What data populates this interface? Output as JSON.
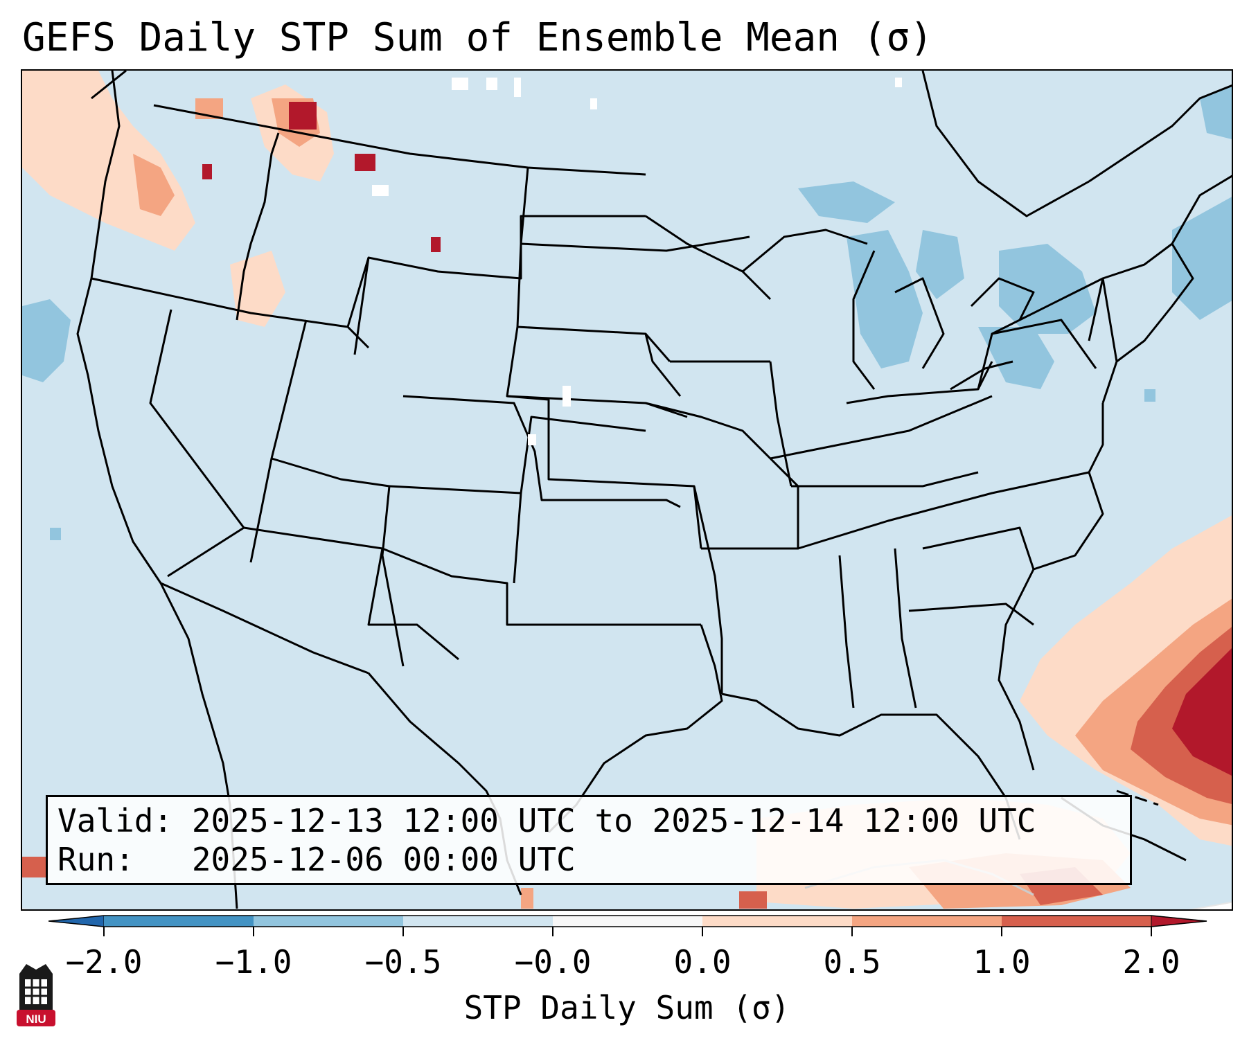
{
  "title": "GEFS Daily STP Sum of Ensemble Mean (σ)",
  "valid_line": "Valid: 2025-12-13 12:00 UTC to 2025-12-14 12:00 UTC",
  "run_line": "Run:   2025-12-06 00:00 UTC",
  "colorbar": {
    "label": "STP Daily Sum (σ)",
    "ticks": [
      "−2.0",
      "−1.0",
      "−0.5",
      "−0.0",
      "0.0",
      "0.5",
      "1.0",
      "2.0"
    ],
    "colors": [
      "#4393c3",
      "#92c5de",
      "#d1e5f0",
      "#f7f7f7",
      "#fddbc7",
      "#f4a582",
      "#d6604d",
      "#b2182b"
    ],
    "under_color": "#2166ac",
    "over_color": "#b2182b"
  },
  "map": {
    "background_color": "#d1e5f0",
    "outside_color": "#ffffff",
    "border_color": "#000000"
  },
  "logo": {
    "text": "NIU",
    "color": "#c8102e"
  }
}
